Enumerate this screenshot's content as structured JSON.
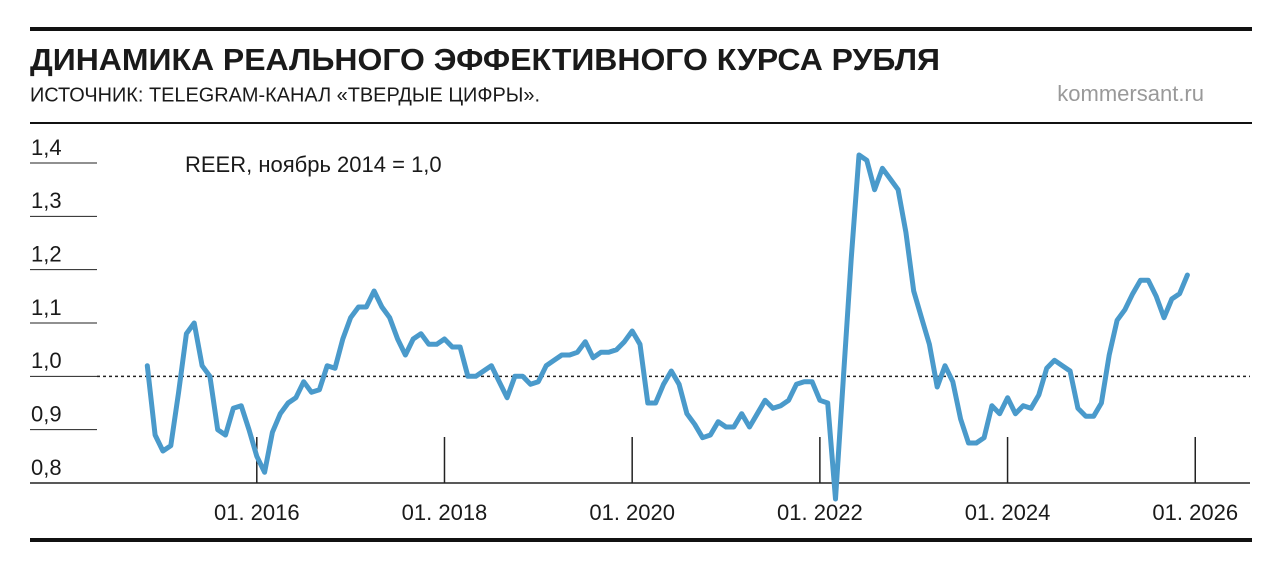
{
  "chart_data": {
    "type": "line",
    "title": "ДИНАМИКА РЕАЛЬНОГО ЭФФЕКТИВНОГО КУРСА РУБЛЯ",
    "subtitle": "ИСТОЧНИК: TELEGRAM-КАНАЛ «ТВЕРДЫЕ ЦИФРЫ».",
    "credit": "kommersant.ru",
    "annotation": "REER, ноябрь 2014 = 1,0",
    "x": [
      "2014-11",
      "2014-12",
      "2015-01",
      "2015-02",
      "2015-03",
      "2015-04",
      "2015-05",
      "2015-06",
      "2015-07",
      "2015-08",
      "2015-09",
      "2015-10",
      "2015-11",
      "2015-12",
      "2016-01",
      "2016-02",
      "2016-03",
      "2016-04",
      "2016-05",
      "2016-06",
      "2016-07",
      "2016-08",
      "2016-09",
      "2016-10",
      "2016-11",
      "2016-12",
      "2017-01",
      "2017-02",
      "2017-03",
      "2017-04",
      "2017-05",
      "2017-06",
      "2017-07",
      "2017-08",
      "2017-09",
      "2017-10",
      "2017-11",
      "2017-12",
      "2018-01",
      "2018-02",
      "2018-03",
      "2018-04",
      "2018-05",
      "2018-06",
      "2018-07",
      "2018-08",
      "2018-09",
      "2018-10",
      "2018-11",
      "2018-12",
      "2019-01",
      "2019-02",
      "2019-03",
      "2019-04",
      "2019-05",
      "2019-06",
      "2019-07",
      "2019-08",
      "2019-09",
      "2019-10",
      "2019-11",
      "2019-12",
      "2020-01",
      "2020-02",
      "2020-03",
      "2020-04",
      "2020-05",
      "2020-06",
      "2020-07",
      "2020-08",
      "2020-09",
      "2020-10",
      "2020-11",
      "2020-12",
      "2021-01",
      "2021-02",
      "2021-03",
      "2021-04",
      "2021-05",
      "2021-06",
      "2021-07",
      "2021-08",
      "2021-09",
      "2021-10",
      "2021-11",
      "2021-12",
      "2022-01",
      "2022-02",
      "2022-03",
      "2022-04",
      "2022-05",
      "2022-06",
      "2022-07",
      "2022-08",
      "2022-09",
      "2022-10",
      "2022-11",
      "2022-12",
      "2023-01",
      "2023-02",
      "2023-03",
      "2023-04",
      "2023-05",
      "2023-06",
      "2023-07",
      "2023-08",
      "2023-09",
      "2023-10",
      "2023-11",
      "2023-12",
      "2024-01",
      "2024-02",
      "2024-03",
      "2024-04",
      "2024-05",
      "2024-06",
      "2024-07",
      "2024-08",
      "2024-09",
      "2024-10",
      "2024-11",
      "2024-12",
      "2025-01",
      "2025-02",
      "2025-03",
      "2025-04",
      "2025-05",
      "2025-06",
      "2025-07",
      "2025-08",
      "2025-09",
      "2025-10",
      "2025-11",
      "2025-12"
    ],
    "series": [
      {
        "name": "REER",
        "color": "#4a9acb",
        "values": [
          1.02,
          0.89,
          0.86,
          0.87,
          0.97,
          1.08,
          1.1,
          1.02,
          1.0,
          0.9,
          0.89,
          0.94,
          0.945,
          0.9,
          0.85,
          0.82,
          0.895,
          0.93,
          0.95,
          0.96,
          0.99,
          0.97,
          0.975,
          1.02,
          1.015,
          1.07,
          1.11,
          1.13,
          1.13,
          1.16,
          1.13,
          1.11,
          1.07,
          1.04,
          1.07,
          1.08,
          1.06,
          1.06,
          1.07,
          1.055,
          1.055,
          1.0,
          1.0,
          1.01,
          1.02,
          0.99,
          0.96,
          1.0,
          1.0,
          0.985,
          0.99,
          1.02,
          1.03,
          1.04,
          1.04,
          1.045,
          1.065,
          1.035,
          1.045,
          1.045,
          1.05,
          1.065,
          1.085,
          1.06,
          0.95,
          0.95,
          0.985,
          1.01,
          0.985,
          0.93,
          0.91,
          0.885,
          0.89,
          0.915,
          0.905,
          0.905,
          0.93,
          0.905,
          0.93,
          0.955,
          0.94,
          0.945,
          0.955,
          0.985,
          0.99,
          0.99,
          0.955,
          0.95,
          0.77,
          0.995,
          1.22,
          1.415,
          1.405,
          1.35,
          1.39,
          1.37,
          1.35,
          1.27,
          1.16,
          1.11,
          1.06,
          0.98,
          1.02,
          0.99,
          0.92,
          0.875,
          0.875,
          0.885,
          0.945,
          0.93,
          0.96,
          0.93,
          0.945,
          0.94,
          0.965,
          1.015,
          1.03,
          1.02,
          1.01,
          0.94,
          0.925,
          0.925,
          0.95,
          1.04,
          1.105,
          1.125,
          1.155,
          1.18,
          1.18,
          1.15,
          1.11,
          1.145,
          1.155,
          1.19
        ]
      }
    ],
    "xlim": [
      "2013-08",
      "2026-08"
    ],
    "xticks": [
      {
        "value": "2016-01",
        "label": "01. 2016"
      },
      {
        "value": "2018-01",
        "label": "01. 2018"
      },
      {
        "value": "2020-01",
        "label": "01. 2020"
      },
      {
        "value": "2022-01",
        "label": "01. 2022"
      },
      {
        "value": "2024-01",
        "label": "01. 2024"
      },
      {
        "value": "2026-01",
        "label": "01. 2026"
      }
    ],
    "ylim": [
      0.8,
      1.4
    ],
    "yticks": [
      {
        "value": 0.8,
        "label": "0,8"
      },
      {
        "value": 0.9,
        "label": "0,9"
      },
      {
        "value": 1.0,
        "label": "1,0"
      },
      {
        "value": 1.1,
        "label": "1,1"
      },
      {
        "value": 1.2,
        "label": "1,2"
      },
      {
        "value": 1.3,
        "label": "1,3"
      },
      {
        "value": 1.4,
        "label": "1,4"
      }
    ],
    "reference_line": 1.0
  }
}
